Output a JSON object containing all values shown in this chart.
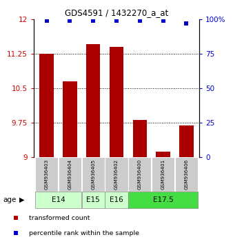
{
  "title": "GDS4591 / 1432270_a_at",
  "samples": [
    "GSM936403",
    "GSM936404",
    "GSM936405",
    "GSM936402",
    "GSM936400",
    "GSM936401",
    "GSM936406"
  ],
  "transformed_counts": [
    11.25,
    10.65,
    11.46,
    11.41,
    9.82,
    9.13,
    9.7
  ],
  "percentile_ranks": [
    99,
    99,
    99,
    99,
    99,
    99,
    97
  ],
  "ylim_left": [
    9,
    12
  ],
  "yticks_left": [
    9,
    9.75,
    10.5,
    11.25,
    12
  ],
  "yticks_right": [
    0,
    25,
    50,
    75,
    100
  ],
  "ylim_right": [
    0,
    100
  ],
  "age_groups": [
    {
      "label": "E14",
      "indices": [
        0,
        1
      ],
      "color": "#ccffcc"
    },
    {
      "label": "E15",
      "indices": [
        2
      ],
      "color": "#ccffcc"
    },
    {
      "label": "E16",
      "indices": [
        3
      ],
      "color": "#ccffcc"
    },
    {
      "label": "E17.5",
      "indices": [
        4,
        5,
        6
      ],
      "color": "#44dd44"
    }
  ],
  "bar_color": "#aa0000",
  "dot_color": "#0000cc",
  "sample_box_color": "#cccccc",
  "legend_items": [
    {
      "color": "#aa0000",
      "label": "transformed count"
    },
    {
      "color": "#0000cc",
      "label": "percentile rank within the sample"
    }
  ]
}
